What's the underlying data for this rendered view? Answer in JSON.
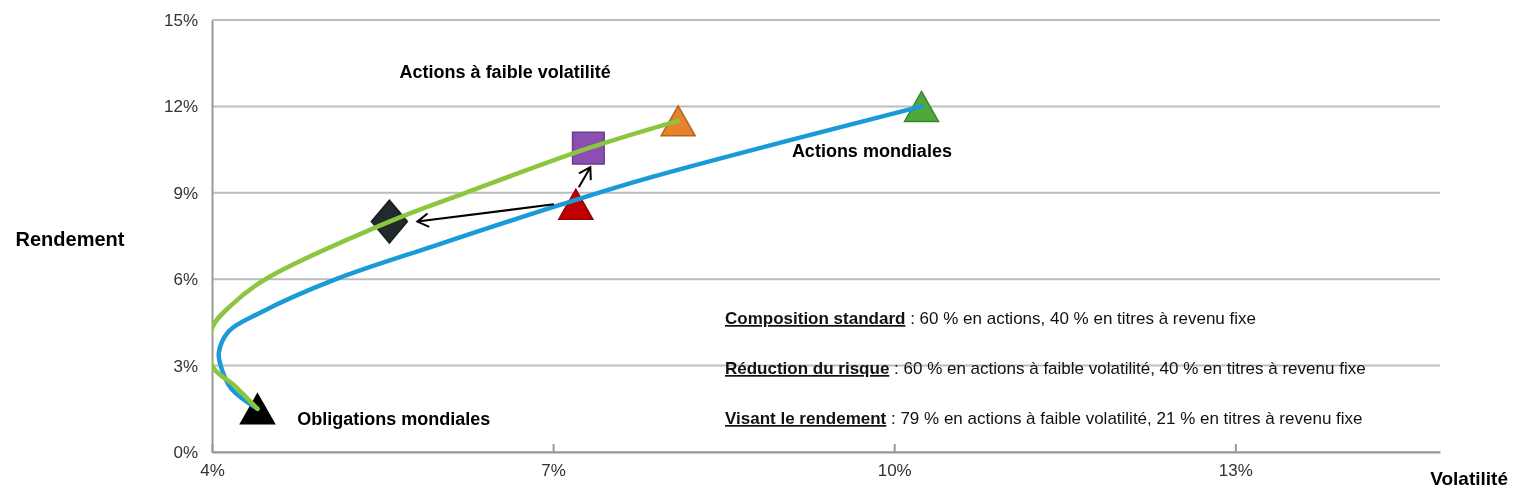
{
  "chart_data": {
    "type": "line",
    "ylabel": "Rendement",
    "xlabel": "Volatilité",
    "xlim": [
      4,
      14.8
    ],
    "ylim": [
      0,
      15
    ],
    "xticks": [
      {
        "value": 4,
        "label": "4%"
      },
      {
        "value": 7,
        "label": "7%"
      },
      {
        "value": 10,
        "label": "10%"
      },
      {
        "value": 13,
        "label": "13%"
      }
    ],
    "yticks": [
      {
        "value": 0,
        "label": "0%"
      },
      {
        "value": 3,
        "label": "3%"
      },
      {
        "value": 6,
        "label": "6%"
      },
      {
        "value": 9,
        "label": "9%"
      },
      {
        "value": 12,
        "label": "12%"
      },
      {
        "value": 15,
        "label": "15%"
      }
    ],
    "grid": "y",
    "series": [
      {
        "color": "#1a9ad6",
        "x": [
          4.4,
          4.17,
          4.08,
          4.06,
          4.15,
          4.42,
          5.09,
          5.95,
          7.06,
          7.88,
          10.24
        ],
        "values": [
          1.5,
          2.2,
          2.95,
          3.45,
          4.2,
          4.83,
          6,
          7.15,
          8.58,
          9.56,
          12
        ]
      },
      {
        "color": "#8cc63f",
        "x": [
          4.4,
          4.2,
          4.0,
          4.0,
          4.17,
          4.47,
          5.56,
          6.23,
          7.31,
          8.1
        ],
        "values": [
          1.5,
          2.3,
          3.0,
          4.3,
          5.1,
          6,
          8.0,
          9,
          10.55,
          11.5
        ]
      },
      {
        "type": "scatter",
        "marker": "triangle",
        "color": "#000000",
        "x": [
          4.4
        ],
        "values": [
          1.5
        ]
      },
      {
        "type": "scatter",
        "marker": "triangle",
        "color": "#4ea83a",
        "x": [
          10.24
        ],
        "values": [
          12.0
        ]
      },
      {
        "type": "scatter",
        "marker": "triangle",
        "color": "#e8822a",
        "x": [
          8.1
        ],
        "values": [
          11.5
        ]
      },
      {
        "type": "scatter",
        "marker": "triangle",
        "color": "#c00000",
        "x": [
          7.2
        ],
        "values": [
          8.6
        ]
      },
      {
        "type": "scatter",
        "marker": "square",
        "color": "#8a4fb0",
        "x": [
          7.31
        ],
        "values": [
          10.55
        ]
      },
      {
        "type": "scatter",
        "marker": "diamond",
        "color": "#222a2e",
        "x": [
          5.56
        ],
        "values": [
          8.0
        ]
      }
    ],
    "annotations": [
      "Actions à faible volatilité",
      "Actions mondiales",
      "Obligations mondiales",
      "Composition standard : 60 % en actions, 40 % en titres à revenu fixe",
      "Réduction du risque : 60 % en actions à faible volatilité, 40 % en titres à revenu fixe",
      "Visant le rendement : 79 % en actions à faible volatilité, 21 % en titres à revenu fixe"
    ]
  }
}
